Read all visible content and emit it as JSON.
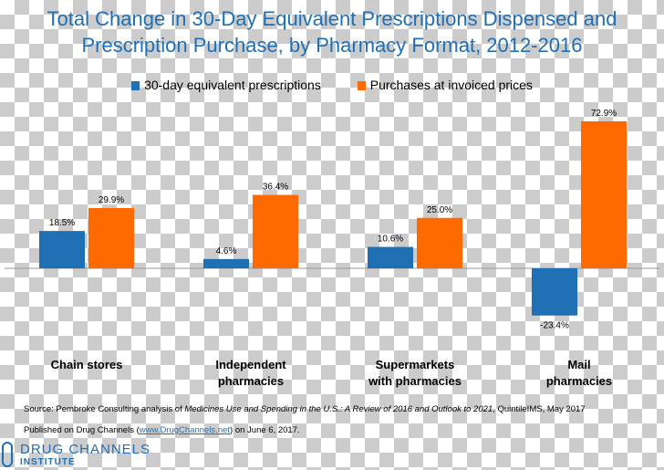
{
  "chart_data": {
    "type": "bar",
    "title": "Total Change in 30-Day Equivalent Prescriptions Dispensed and Prescription Purchase, by Pharmacy Format, 2012-2016",
    "title_lines": [
      "Total Change in 30-Day Equivalent Prescriptions Dispensed and",
      "Prescription Purchase, by Pharmacy Format, 2012-2016"
    ],
    "categories": [
      [
        "Chain stores"
      ],
      [
        "Independent",
        "pharmacies"
      ],
      [
        "Supermarkets",
        "with pharmacies"
      ],
      [
        "Mail",
        "pharmacies"
      ]
    ],
    "series": [
      {
        "name": "30-day equivalent prescriptions",
        "color": "#1f6fb5",
        "values": [
          18.5,
          4.6,
          10.6,
          -23.4
        ],
        "labels": [
          "18.5%",
          "4.6%",
          "10.6%",
          "-23.4%"
        ]
      },
      {
        "name": "Purchases at invoiced prices",
        "color": "#ff6a00",
        "values": [
          29.9,
          36.4,
          25.0,
          72.9
        ],
        "labels": [
          "29.9%",
          "36.4%",
          "25.0%",
          "72.9%"
        ]
      }
    ],
    "ylim": [
      -30,
      75
    ],
    "legend_position": "top-center",
    "grid": false
  },
  "footer": {
    "source_prefix": "Source: Pembroke Consulting analysis of ",
    "source_italic": "Medicines Use and Spending in the U.S.: A Review of 2016 and Outlook to 2021",
    "source_suffix": ", QuintileIMS, May 2017",
    "published_prefix": "Published on Drug Channels (",
    "published_link": "www.DrugChannels.net",
    "published_suffix": ") on June 6, 2017."
  },
  "logo": {
    "name": "DRUG CHANNELS",
    "sub": "INSTITUTE"
  }
}
